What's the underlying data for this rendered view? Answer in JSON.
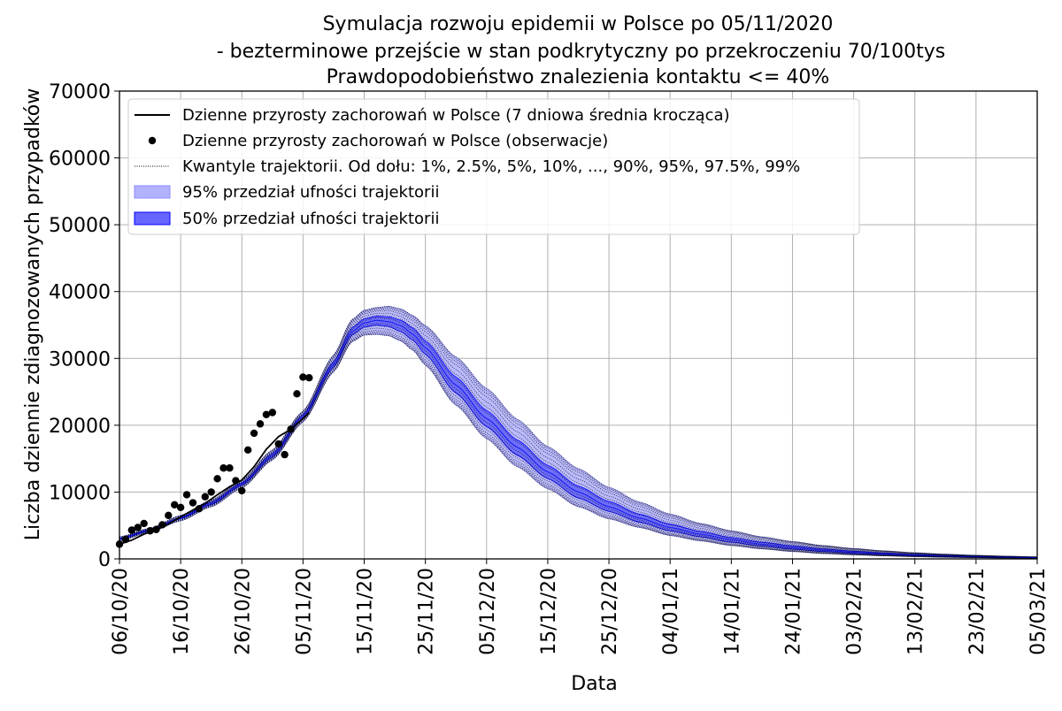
{
  "chart_data": {
    "type": "line",
    "title": [
      "Symulacja rozwoju epidemii w Polsce po 05/11/2020",
      " - bezterminowe przejście w stan podkrytyczny po przekroczeniu 70/100tys",
      "Prawdopodobieństwo znalezienia kontaktu <= 40%"
    ],
    "xlabel": "Data",
    "ylabel": "Liczba dziennie zdiagnozowanych przypadków",
    "x_range": [
      "06/10/20",
      "05/03/21"
    ],
    "ylim": [
      0,
      70000
    ],
    "y_ticks": [
      0,
      10000,
      20000,
      30000,
      40000,
      50000,
      60000,
      70000
    ],
    "x_ticks": [
      {
        "date": "06/10/20",
        "day": 0
      },
      {
        "date": "16/10/20",
        "day": 10
      },
      {
        "date": "26/10/20",
        "day": 20
      },
      {
        "date": "05/11/20",
        "day": 30
      },
      {
        "date": "15/11/20",
        "day": 40
      },
      {
        "date": "25/11/20",
        "day": 50
      },
      {
        "date": "05/12/20",
        "day": 60
      },
      {
        "date": "15/12/20",
        "day": 70
      },
      {
        "date": "25/12/20",
        "day": 80
      },
      {
        "date": "04/01/21",
        "day": 90
      },
      {
        "date": "14/01/21",
        "day": 100
      },
      {
        "date": "24/01/21",
        "day": 110
      },
      {
        "date": "03/02/21",
        "day": 120
      },
      {
        "date": "13/02/21",
        "day": 130
      },
      {
        "date": "23/02/21",
        "day": 140
      },
      {
        "date": "05/03/21",
        "day": 150
      }
    ],
    "grid": true,
    "legend_position": "top-left",
    "legend": [
      {
        "key": "avg",
        "label": "Dzienne przyrosty zachorowań w Polsce (7 dniowa średnia krocząca)"
      },
      {
        "key": "obs",
        "label": "Dzienne przyrosty zachorowań w Polsce (obserwacje)"
      },
      {
        "key": "quant",
        "label": "Kwantyle trajektorii. Od dołu: 1%, 2.5%, 5%, 10%, ..., 90%, 95%, 97.5%, 99%"
      },
      {
        "key": "ci95",
        "label": "95% przedział ufności trajektorii"
      },
      {
        "key": "ci50",
        "label": "50% przedział ufności trajektorii"
      }
    ],
    "colors": {
      "avg": "#000000",
      "obs": "#000000",
      "quant": "#000000",
      "ci95": "#b2b2ff",
      "ci95_edge": "#8c8cff",
      "ci50": "#6666ff",
      "ci50_edge": "#0000ff",
      "median": "#0000ff",
      "grid": "#b0b0b0"
    },
    "observations": [
      [
        0,
        2200
      ],
      [
        1,
        2900
      ],
      [
        2,
        4300
      ],
      [
        3,
        4700
      ],
      [
        4,
        5300
      ],
      [
        5,
        4200
      ],
      [
        6,
        4400
      ],
      [
        7,
        5100
      ],
      [
        8,
        6500
      ],
      [
        9,
        8100
      ],
      [
        10,
        7700
      ],
      [
        11,
        9600
      ],
      [
        12,
        8400
      ],
      [
        13,
        7500
      ],
      [
        14,
        9300
      ],
      [
        15,
        10000
      ],
      [
        16,
        12000
      ],
      [
        17,
        13600
      ],
      [
        18,
        13600
      ],
      [
        19,
        11700
      ],
      [
        20,
        10200
      ],
      [
        21,
        16300
      ],
      [
        22,
        18800
      ],
      [
        23,
        20200
      ],
      [
        24,
        21600
      ],
      [
        25,
        21900
      ],
      [
        26,
        17200
      ],
      [
        27,
        15600
      ],
      [
        28,
        19400
      ],
      [
        29,
        24700
      ],
      [
        30,
        27200
      ],
      [
        31,
        27100
      ]
    ],
    "moving_average": [
      [
        0,
        2200
      ],
      [
        2,
        2800
      ],
      [
        4,
        3700
      ],
      [
        6,
        4400
      ],
      [
        8,
        5200
      ],
      [
        10,
        6300
      ],
      [
        12,
        7300
      ],
      [
        14,
        8300
      ],
      [
        16,
        9600
      ],
      [
        18,
        10800
      ],
      [
        20,
        11800
      ],
      [
        22,
        13800
      ],
      [
        24,
        16400
      ],
      [
        26,
        18300
      ],
      [
        28,
        19400
      ],
      [
        30,
        21000
      ],
      [
        31,
        21900
      ]
    ],
    "band_fit": {
      "days": [
        0,
        5,
        10,
        15,
        20,
        25,
        30,
        35,
        38,
        40,
        42,
        44,
        46,
        48,
        50,
        55,
        60,
        65,
        70,
        75,
        80,
        85,
        90,
        95,
        100,
        105,
        110,
        115,
        120,
        125,
        130,
        135,
        140,
        145,
        150
      ],
      "q01": [
        2700,
        4000,
        5700,
        7800,
        10600,
        14800,
        20500,
        28000,
        32500,
        33500,
        33600,
        33400,
        32600,
        31200,
        29000,
        23000,
        18000,
        13800,
        10500,
        7800,
        6000,
        4700,
        3500,
        2700,
        2000,
        1500,
        1100,
        800,
        600,
        450,
        330,
        240,
        180,
        130,
        100
      ],
      "q25": [
        2900,
        4200,
        6000,
        8100,
        11000,
        15200,
        21000,
        28700,
        33500,
        34700,
        35000,
        34800,
        34000,
        32700,
        30600,
        24800,
        19800,
        15500,
        12000,
        9100,
        7100,
        5500,
        4200,
        3300,
        2500,
        1900,
        1450,
        1100,
        820,
        620,
        470,
        350,
        260,
        200,
        150
      ],
      "q50": [
        3000,
        4300,
        6100,
        8300,
        11200,
        15500,
        21300,
        29100,
        34000,
        35300,
        35700,
        35500,
        34900,
        33600,
        31600,
        26000,
        21000,
        16700,
        13000,
        10000,
        7800,
        6100,
        4700,
        3700,
        2900,
        2200,
        1700,
        1300,
        980,
        750,
        570,
        430,
        330,
        250,
        190
      ],
      "q75": [
        3100,
        4400,
        6200,
        8500,
        11400,
        15800,
        21600,
        29500,
        34600,
        35900,
        36300,
        36200,
        35700,
        34500,
        32600,
        27200,
        22200,
        17800,
        14000,
        10900,
        8600,
        6700,
        5200,
        4100,
        3200,
        2500,
        1950,
        1500,
        1150,
        880,
        680,
        520,
        400,
        300,
        230
      ],
      "q99": [
        3300,
        4600,
        6500,
        8800,
        11800,
        16300,
        22100,
        30500,
        35800,
        37200,
        37600,
        37800,
        37400,
        36400,
        34900,
        30200,
        25500,
        20900,
        16800,
        13500,
        10700,
        8500,
        6700,
        5300,
        4200,
        3300,
        2600,
        2000,
        1550,
        1200,
        920,
        700,
        530,
        400,
        300
      ]
    },
    "quantile_lines": [
      {
        "q": "1%",
        "t": -1.0
      },
      {
        "q": "2.5%",
        "t": -0.93
      },
      {
        "q": "5%",
        "t": -0.84
      },
      {
        "q": "10%",
        "t": -0.72
      },
      {
        "q": "20%",
        "t": -0.55
      },
      {
        "q": "30%",
        "t": -0.38
      },
      {
        "q": "40%",
        "t": -0.19
      },
      {
        "q": "50%",
        "t": 0.0
      },
      {
        "q": "60%",
        "t": 0.19
      },
      {
        "q": "70%",
        "t": 0.38
      },
      {
        "q": "80%",
        "t": 0.55
      },
      {
        "q": "90%",
        "t": 0.72
      },
      {
        "q": "95%",
        "t": 0.84
      },
      {
        "q": "97.5%",
        "t": 0.93
      },
      {
        "q": "99%",
        "t": 1.0
      }
    ]
  }
}
